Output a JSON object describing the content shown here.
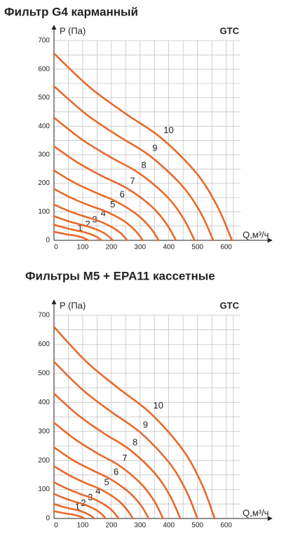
{
  "chart_data": [
    {
      "type": "line",
      "title": "Фильтр G4 карманный",
      "brand": "GTC",
      "y_label": "P (Па)",
      "x_label": "Q,м³/ч",
      "xlim": [
        0,
        650
      ],
      "ylim": [
        0,
        700
      ],
      "grid": true,
      "color": "#e8692a",
      "xticks": [
        0,
        100,
        200,
        300,
        400,
        500,
        600
      ],
      "yticks": [
        0,
        100,
        200,
        300,
        400,
        500,
        600,
        700
      ],
      "series": [
        {
          "name": "1",
          "x": [
            0,
            24,
            48,
            72,
            96,
            110,
            120
          ],
          "values": [
            30,
            25,
            20,
            17,
            11,
            5,
            0
          ]
        },
        {
          "name": "2",
          "x": [
            0,
            33,
            66,
            99,
            132,
            152,
            165
          ],
          "values": [
            55,
            45,
            37,
            30,
            20,
            10,
            0
          ]
        },
        {
          "name": "3",
          "x": [
            0,
            41,
            82,
            123,
            164,
            189,
            205
          ],
          "values": [
            85,
            70,
            58,
            47,
            31,
            15,
            0
          ]
        },
        {
          "name": "4",
          "x": [
            0,
            51,
            102,
            153,
            204,
            235,
            255
          ],
          "values": [
            125,
            103,
            85,
            69,
            45,
            23,
            0
          ]
        },
        {
          "name": "5",
          "x": [
            0,
            62,
            124,
            186,
            248,
            285,
            310
          ],
          "values": [
            180,
            148,
            122,
            99,
            65,
            32,
            0
          ]
        },
        {
          "name": "6",
          "x": [
            0,
            73,
            146,
            219,
            292,
            336,
            365
          ],
          "values": [
            245,
            201,
            167,
            135,
            88,
            44,
            0
          ]
        },
        {
          "name": "7",
          "x": [
            0,
            85,
            170,
            255,
            340,
            391,
            425
          ],
          "values": [
            330,
            271,
            224,
            182,
            119,
            59,
            0
          ]
        },
        {
          "name": "8",
          "x": [
            0,
            98,
            196,
            294,
            392,
            451,
            490
          ],
          "values": [
            430,
            353,
            292,
            237,
            155,
            77,
            0
          ]
        },
        {
          "name": "9",
          "x": [
            0,
            111,
            222,
            333,
            444,
            511,
            555
          ],
          "values": [
            540,
            443,
            367,
            297,
            194,
            97,
            0
          ]
        },
        {
          "name": "10",
          "x": [
            0,
            124,
            248,
            372,
            496,
            570,
            620
          ],
          "values": [
            655,
            537,
            445,
            360,
            236,
            118,
            0
          ]
        }
      ]
    },
    {
      "type": "line",
      "title": "Фильтры М5 + EPA11 кассетные",
      "brand": "GTC",
      "y_label": "P (Па)",
      "x_label": "Q,м³/ч",
      "xlim": [
        0,
        650
      ],
      "ylim": [
        0,
        700
      ],
      "grid": true,
      "color": "#e8692a",
      "xticks": [
        0,
        100,
        200,
        300,
        400,
        500,
        600
      ],
      "yticks": [
        0,
        100,
        200,
        300,
        400,
        500,
        600,
        700
      ],
      "series": [
        {
          "name": "1",
          "x": [
            0,
            21,
            42,
            63,
            84,
            97,
            105
          ],
          "values": [
            25,
            21,
            17,
            14,
            9,
            5,
            0
          ]
        },
        {
          "name": "2",
          "x": [
            0,
            28,
            56,
            84,
            112,
            129,
            140
          ],
          "values": [
            50,
            41,
            34,
            28,
            18,
            9,
            0
          ]
        },
        {
          "name": "3",
          "x": [
            0,
            36,
            72,
            108,
            144,
            166,
            180
          ],
          "values": [
            85,
            70,
            58,
            47,
            31,
            15,
            0
          ]
        },
        {
          "name": "4",
          "x": [
            0,
            45,
            90,
            135,
            180,
            207,
            225
          ],
          "values": [
            125,
            103,
            85,
            69,
            45,
            23,
            0
          ]
        },
        {
          "name": "5",
          "x": [
            0,
            55,
            110,
            165,
            220,
            253,
            275
          ],
          "values": [
            180,
            148,
            122,
            99,
            65,
            32,
            0
          ]
        },
        {
          "name": "6",
          "x": [
            0,
            66,
            132,
            198,
            264,
            304,
            330
          ],
          "values": [
            245,
            201,
            167,
            135,
            88,
            44,
            0
          ]
        },
        {
          "name": "7",
          "x": [
            0,
            76,
            152,
            228,
            304,
            350,
            380
          ],
          "values": [
            330,
            271,
            224,
            182,
            119,
            59,
            0
          ]
        },
        {
          "name": "8",
          "x": [
            0,
            88,
            176,
            264,
            352,
            405,
            440
          ],
          "values": [
            430,
            353,
            292,
            237,
            155,
            77,
            0
          ]
        },
        {
          "name": "9",
          "x": [
            0,
            100,
            200,
            300,
            400,
            460,
            500
          ],
          "values": [
            540,
            443,
            367,
            297,
            194,
            97,
            0
          ]
        },
        {
          "name": "10",
          "x": [
            0,
            112,
            224,
            336,
            448,
            515,
            560
          ],
          "values": [
            660,
            541,
            449,
            363,
            238,
            119,
            0
          ]
        }
      ]
    }
  ]
}
